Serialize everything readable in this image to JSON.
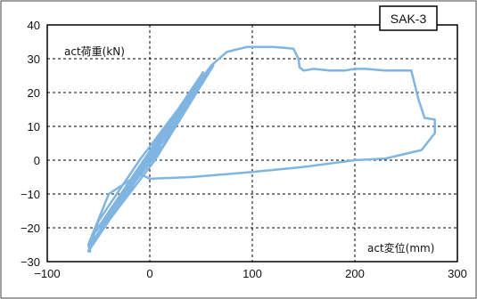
{
  "chart_data": {
    "type": "line",
    "badge": "SAK-3",
    "ylabel": "act荷重(kN)",
    "xlabel": "act変位(mm)",
    "xlim": [
      -100,
      300
    ],
    "ylim": [
      -30,
      40
    ],
    "x_ticks": [
      -100,
      0,
      100,
      200,
      300
    ],
    "y_ticks": [
      -30,
      -20,
      -10,
      0,
      10,
      20,
      30,
      40
    ],
    "grid": true,
    "series_color": "#7fb5e0",
    "series": [
      {
        "points": [
          [
            0,
            0
          ],
          [
            5,
            2
          ],
          [
            -5,
            -2
          ],
          [
            0,
            0
          ],
          [
            10,
            4
          ],
          [
            -12,
            -5
          ],
          [
            2,
            1
          ],
          [
            18,
            8
          ],
          [
            -22,
            -9
          ],
          [
            4,
            2
          ],
          [
            28,
            14
          ],
          [
            -35,
            -14
          ],
          [
            6,
            3
          ],
          [
            40,
            20
          ],
          [
            -48,
            -20
          ],
          [
            8,
            4
          ],
          [
            52,
            26
          ],
          [
            -55,
            -22
          ],
          [
            10,
            3
          ],
          [
            60,
            28
          ],
          [
            -58,
            -25
          ],
          [
            5,
            0
          ],
          [
            62,
            28
          ],
          [
            -60,
            -27
          ],
          [
            -50,
            -18
          ],
          [
            -10,
            0
          ],
          [
            20,
            12
          ],
          [
            60,
            28
          ],
          [
            75,
            32
          ],
          [
            95,
            33.5
          ],
          [
            120,
            33.5
          ],
          [
            140,
            33
          ],
          [
            145,
            30
          ],
          [
            146,
            27.5
          ],
          [
            150,
            26.5
          ],
          [
            160,
            27
          ],
          [
            175,
            26.5
          ],
          [
            190,
            26.5
          ],
          [
            200,
            27
          ],
          [
            210,
            27
          ],
          [
            230,
            26.5
          ],
          [
            255,
            26.5
          ],
          [
            262,
            18
          ],
          [
            268,
            12.5
          ],
          [
            278,
            12
          ],
          [
            278,
            8
          ],
          [
            265,
            3
          ],
          [
            230,
            0.5
          ],
          [
            200,
            0
          ],
          [
            150,
            -2
          ],
          [
            100,
            -3.5
          ],
          [
            40,
            -5
          ],
          [
            0,
            -5.5
          ],
          [
            -10,
            -4
          ],
          [
            -40,
            -10
          ],
          [
            -60,
            -25
          ],
          [
            -58,
            -27
          ]
        ]
      }
    ]
  }
}
